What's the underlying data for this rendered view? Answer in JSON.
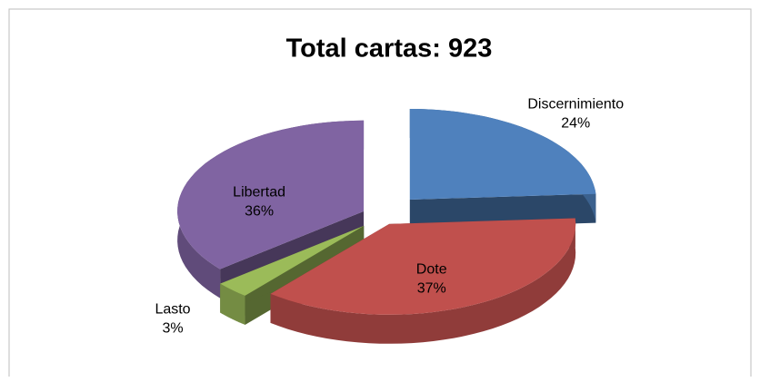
{
  "chart_data": {
    "type": "pie",
    "title": "Total cartas: 923",
    "categories": [
      "Discernimiento",
      "Dote",
      "Lasto",
      "Libertad"
    ],
    "values": [
      24,
      37,
      3,
      36
    ],
    "value_labels": [
      "24%",
      "37%",
      "3%",
      "36%"
    ],
    "colors": [
      "#4f81bd",
      "#c0504d",
      "#9bbb59",
      "#8064a2"
    ]
  }
}
